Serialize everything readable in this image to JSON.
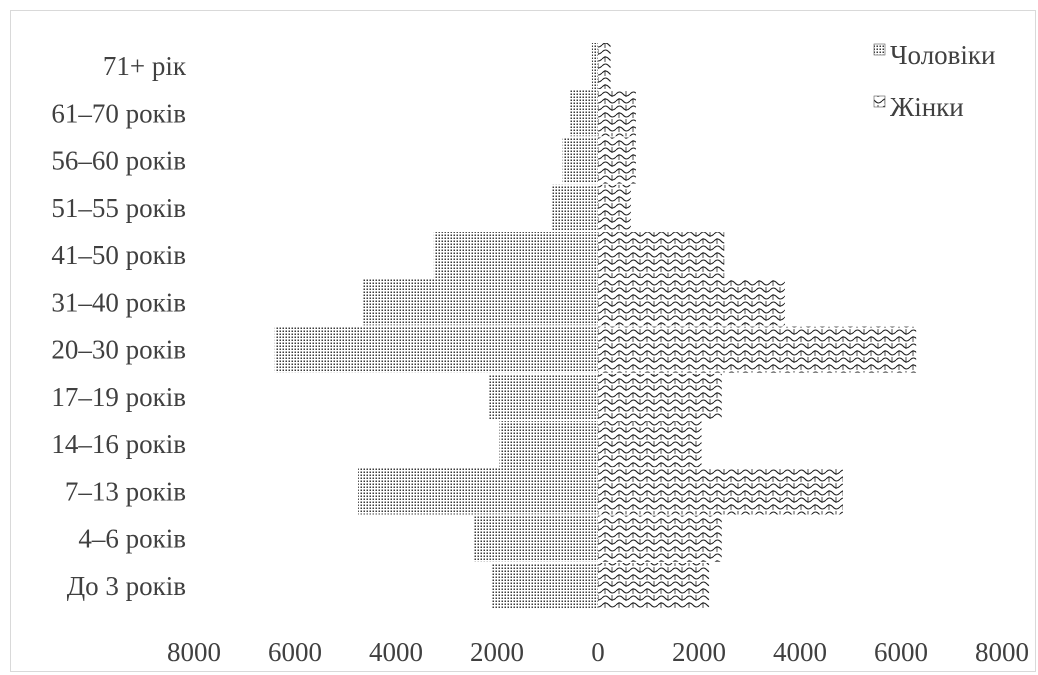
{
  "chart_data": {
    "type": "bar",
    "orientation": "horizontal",
    "layout": "population-pyramid",
    "categories": [
      "71+ рік",
      "61–70 років",
      "56–60 років",
      "51–55 років",
      "41–50 років",
      "31–40 років",
      "20–30 років",
      "17–19 років",
      "14–16 років",
      "7–13 років",
      "4–6 років",
      "До 3 років"
    ],
    "series": [
      {
        "name": "Чоловіки",
        "pattern": "dots",
        "values": [
          120,
          550,
          700,
          900,
          3250,
          4650,
          6400,
          2150,
          1950,
          4750,
          2450,
          2100
        ]
      },
      {
        "name": "Жінки",
        "pattern": "waves",
        "values": [
          250,
          750,
          750,
          650,
          2500,
          3700,
          6300,
          2450,
          2050,
          4850,
          2450,
          2200
        ]
      }
    ],
    "x_tick_labels": [
      "8000",
      "6000",
      "4000",
      "2000",
      "0",
      "2000",
      "4000",
      "6000",
      "8000"
    ],
    "xlim": [
      -8000,
      8000
    ],
    "grid": false,
    "legend_position": "top-right",
    "colors": {
      "bar_outline": "#404040",
      "text": "#404040",
      "border": "#d9d9d9"
    }
  }
}
